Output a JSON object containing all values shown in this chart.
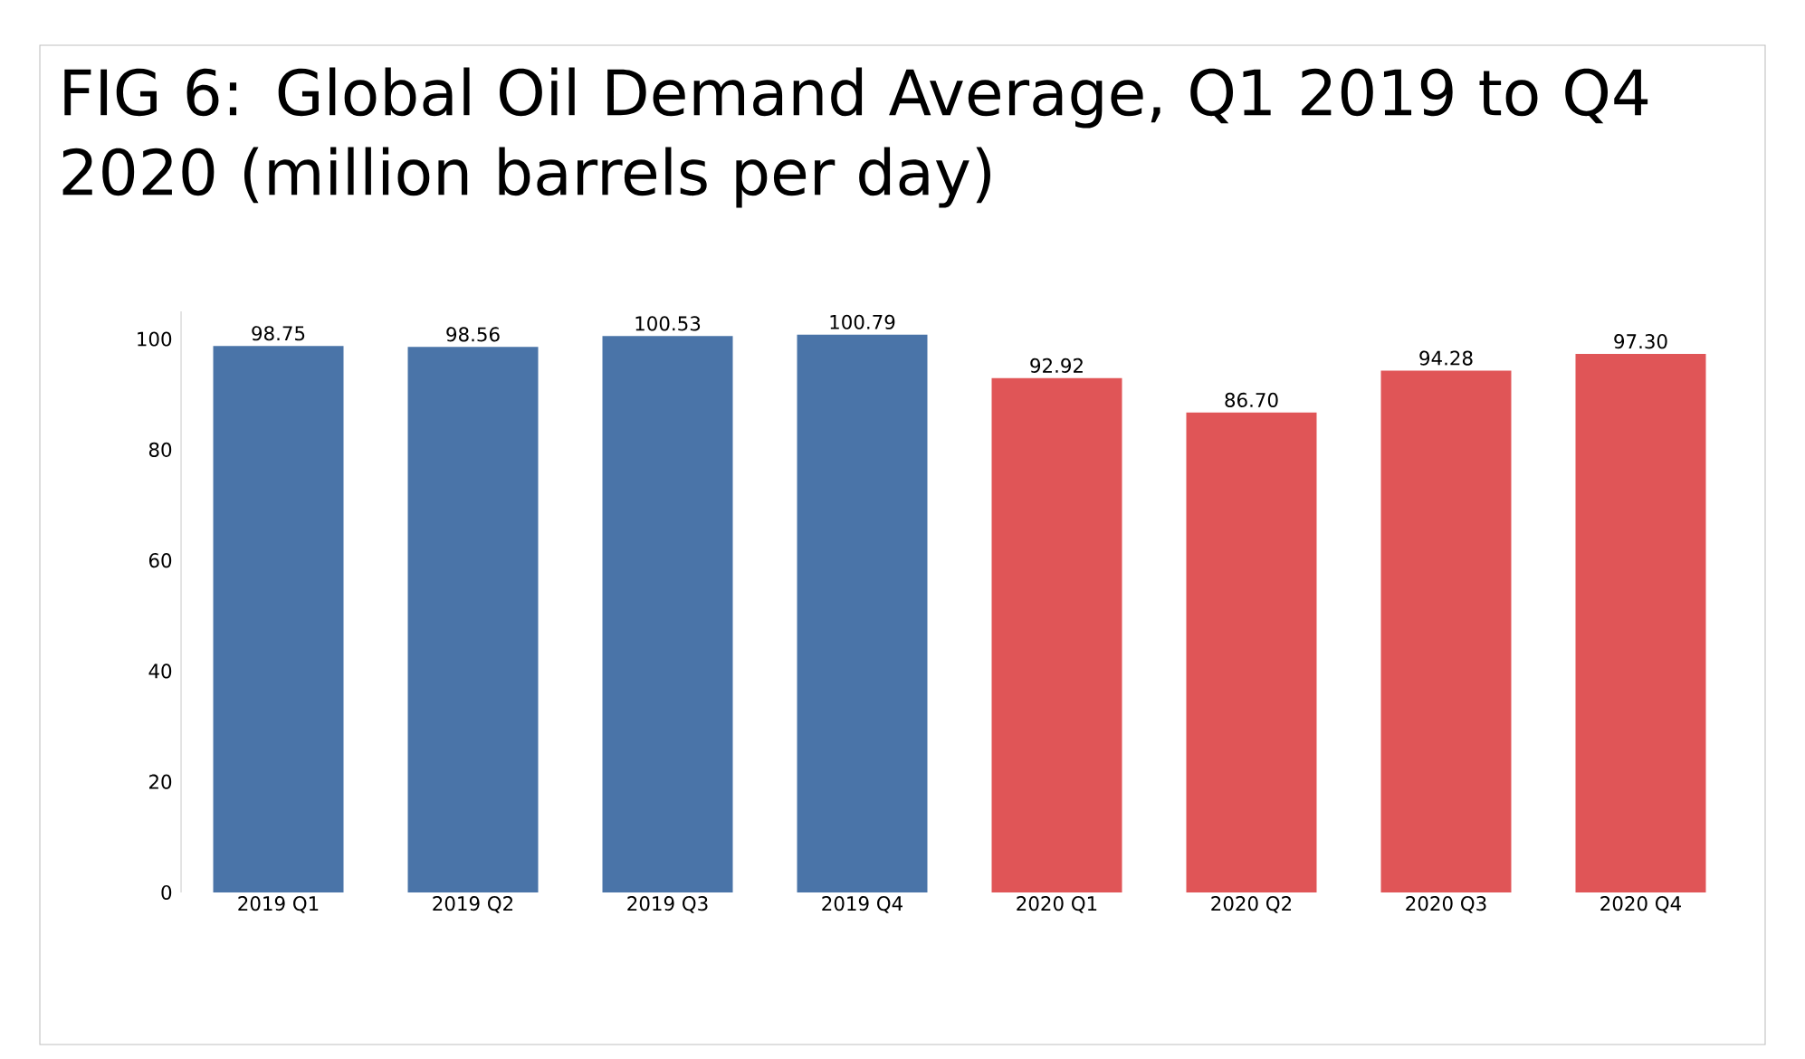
{
  "chart_data": {
    "type": "bar",
    "title": "FIG 6: Global Oil Demand Average, Q1 2019 to Q4 2020 (million barrels per day)",
    "categories": [
      "2019 Q1",
      "2019 Q2",
      "2019 Q3",
      "2019 Q4",
      "2020 Q1",
      "2020 Q2",
      "2020 Q3",
      "2020 Q4"
    ],
    "values": [
      98.75,
      98.56,
      100.53,
      100.79,
      92.92,
      86.7,
      94.28,
      97.3
    ],
    "colors": [
      "#4a74a8",
      "#4a74a8",
      "#4a74a8",
      "#4a74a8",
      "#e05557",
      "#e05557",
      "#e05557",
      "#e05557"
    ],
    "value_labels": [
      "98.75",
      "98.56",
      "100.53",
      "100.79",
      "92.92",
      "86.70",
      "94.28",
      "97.30"
    ],
    "ylim": [
      0,
      105
    ],
    "yticks": [
      0,
      20,
      40,
      60,
      80,
      100
    ],
    "grid": false
  }
}
